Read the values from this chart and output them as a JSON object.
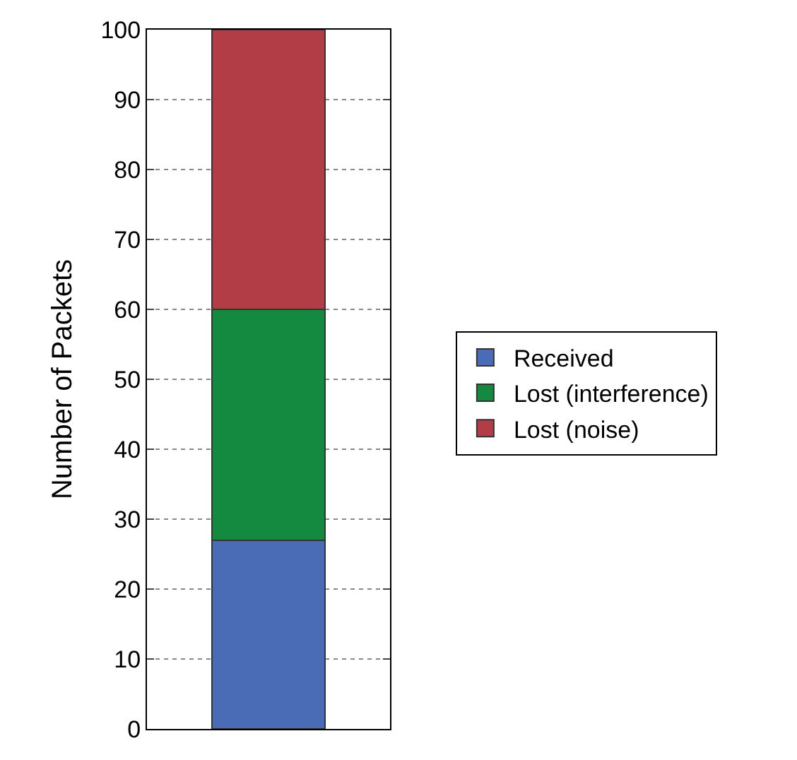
{
  "chart_data": {
    "type": "bar",
    "stacked": true,
    "ylabel": "Number of Packets",
    "categories": [
      null
    ],
    "series": [
      {
        "name": "Received",
        "color": "#4a6bb5",
        "values": [
          27
        ]
      },
      {
        "name": "Lost (interference)",
        "color": "#138a3f",
        "values": [
          33
        ]
      },
      {
        "name": "Lost (noise)",
        "color": "#b33d47",
        "values": [
          40
        ]
      }
    ],
    "ylim": [
      0,
      100
    ],
    "yticks": [
      0,
      10,
      20,
      30,
      40,
      50,
      60,
      70,
      80,
      90,
      100
    ],
    "grid": "y",
    "legend": "right"
  }
}
